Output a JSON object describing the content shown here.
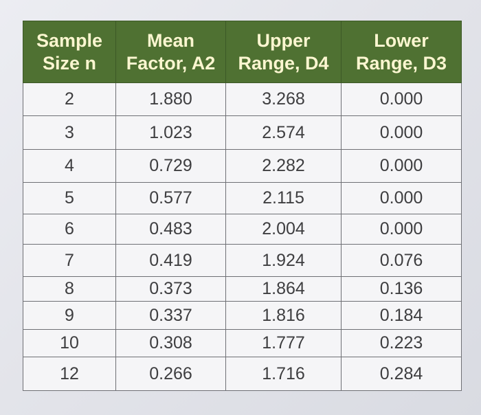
{
  "table": {
    "header": [
      [
        "Sample",
        "Size n"
      ],
      [
        "Mean",
        "Factor, A2"
      ],
      [
        "Upper",
        "Range, D4"
      ],
      [
        "Lower",
        "Range, D3"
      ]
    ],
    "rows": [
      [
        "2",
        "1.880",
        "3.268",
        "0.000"
      ],
      [
        "3",
        "1.023",
        "2.574",
        "0.000"
      ],
      [
        "4",
        "0.729",
        "2.282",
        "0.000"
      ],
      [
        "5",
        "0.577",
        "2.115",
        "0.000"
      ],
      [
        "6",
        "0.483",
        "2.004",
        "0.000"
      ],
      [
        "7",
        "0.419",
        "1.924",
        "0.076"
      ],
      [
        "8",
        "0.373",
        "1.864",
        "0.136"
      ],
      [
        "9",
        "0.337",
        "1.816",
        "0.184"
      ],
      [
        "10",
        "0.308",
        "1.777",
        "0.223"
      ],
      [
        "12",
        "0.266",
        "1.716",
        "0.284"
      ]
    ],
    "colors": {
      "header_bg": "#4f7132",
      "header_text": "#fbf6d0",
      "cell_text": "#3e3e40",
      "grid": "#6e6f74"
    }
  }
}
